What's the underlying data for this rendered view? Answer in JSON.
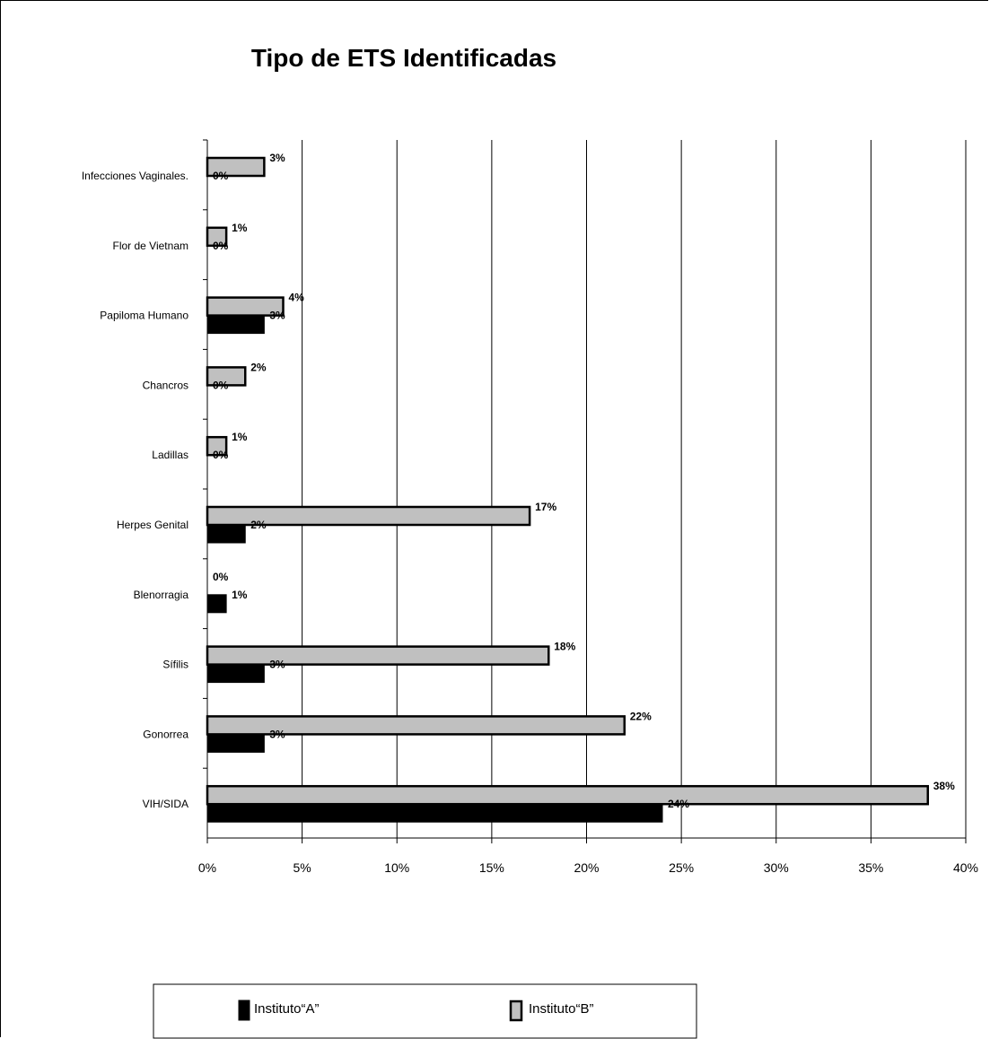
{
  "chart_data": {
    "type": "bar",
    "orientation": "horizontal",
    "title": "Tipo de ETS  Identificadas",
    "xlabel": "",
    "ylabel": "",
    "xlim": [
      0,
      40
    ],
    "xticks": [
      "0%",
      "5%",
      "10%",
      "15%",
      "20%",
      "25%",
      "30%",
      "35%",
      "40%"
    ],
    "grid": "vertical",
    "legend_position": "bottom",
    "categories": [
      "VIH/SIDA",
      "Gonorrea",
      "Sífilis",
      "Blenorragia",
      "Herpes Genital",
      "Ladillas",
      "Chancros",
      "Papiloma Humano",
      "Flor de Vietnam",
      "Infecciones Vaginales."
    ],
    "series": [
      {
        "name": "Instituto“A”",
        "color": "#000000",
        "values": [
          24,
          3,
          3,
          1,
          2,
          0,
          0,
          3,
          0,
          0
        ],
        "labels": [
          "24%",
          "3%",
          "3%",
          "1%",
          "2%",
          "0%",
          "0%",
          "3%",
          "0%",
          "0%"
        ]
      },
      {
        "name": "Instituto“B”",
        "color": "#c0c0c0",
        "values": [
          38,
          22,
          18,
          0,
          17,
          1,
          2,
          4,
          1,
          3
        ],
        "labels": [
          "38%",
          "22%",
          "18%",
          "0%",
          "17%",
          "1%",
          "2%",
          "4%",
          "1%",
          "3%"
        ]
      }
    ]
  }
}
